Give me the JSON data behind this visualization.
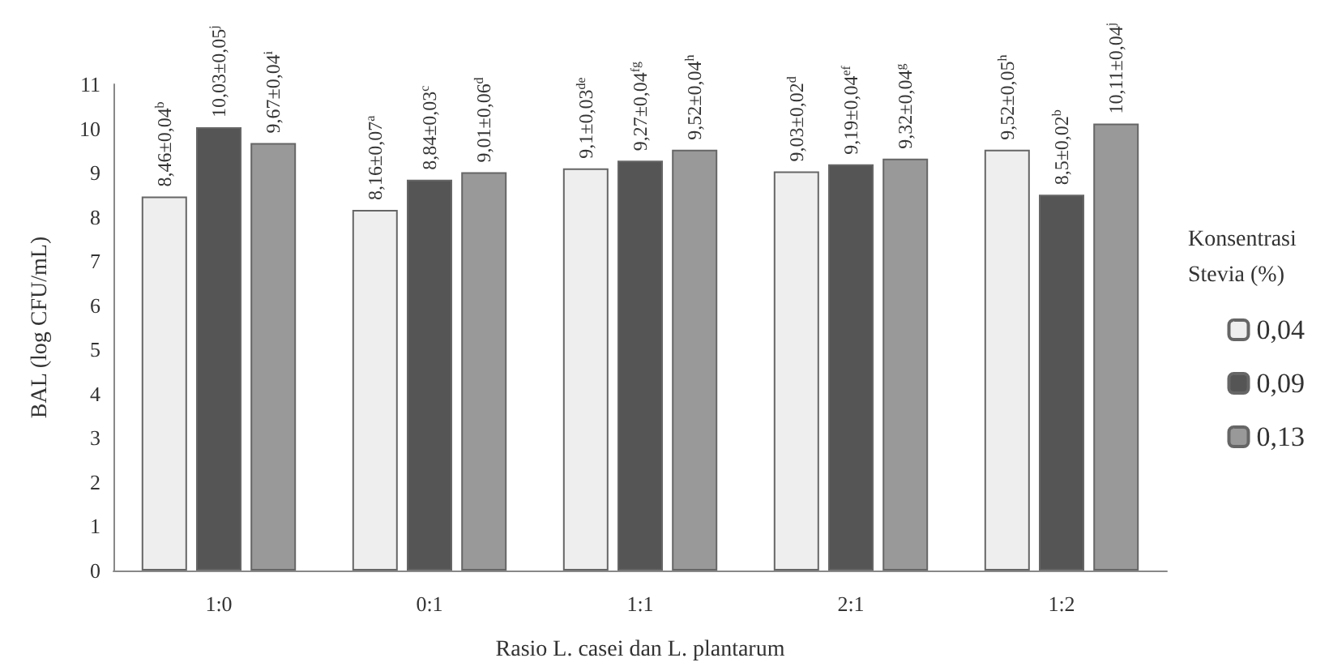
{
  "chart_data": {
    "type": "bar",
    "xlabel": "Rasio L. casei dan L. plantarum",
    "ylabel": "BAL (log CFU/mL)",
    "legend_title": "Konsentrasi Stevia (%)",
    "categories": [
      "1:0",
      "0:1",
      "1:1",
      "2:1",
      "1:2"
    ],
    "series": [
      {
        "name": "0,04",
        "color": "#eeeeee",
        "values": [
          8.46,
          8.16,
          9.1,
          9.03,
          9.52
        ],
        "value_labels": [
          "8,46±0,04$^{b}$",
          "8,16±0,07$^{a}$",
          "9,1±0,03$^{de}$",
          "9,03±0,02$^{d}$",
          "9,52±0,05$^{h}$"
        ]
      },
      {
        "name": "0,09",
        "color": "#555555",
        "values": [
          10.03,
          8.84,
          9.27,
          9.19,
          8.5
        ],
        "value_labels": [
          "10,03±0,05$^{j}$",
          "8,84±0,03$^{c}$",
          "9,27±0,04$^{fg}$",
          "9,19±0,04$^{ef}$",
          "8,5±0,02$^{b}$"
        ]
      },
      {
        "name": "0,13",
        "color": "#999999",
        "values": [
          9.67,
          9.01,
          9.52,
          9.32,
          10.11
        ],
        "value_labels": [
          "9,67±0,04$^{i}$",
          "9,01±0,06$^{d}$",
          "9,52±0,04$^{h}$",
          "9,32±0,04$^{g}$",
          "10,11±0,04$^{j}$"
        ]
      }
    ],
    "ylim": [
      0,
      11
    ],
    "yticks": [
      0,
      1,
      2,
      3,
      4,
      5,
      6,
      7,
      8,
      9,
      10,
      11
    ],
    "grid": false,
    "legend": "right"
  }
}
